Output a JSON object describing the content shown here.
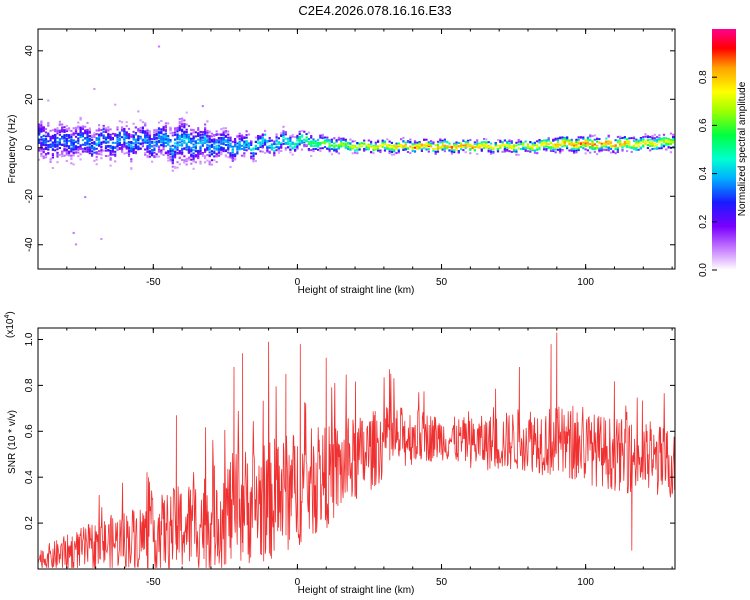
{
  "figure_title": "C2E4.2026.078.16.16.E33",
  "chart_data": [
    {
      "type": "heatmap",
      "title": "C2E4.2026.078.16.16.E33",
      "xlabel": "Height of straight line (km)",
      "ylabel": "Frequency (Hz)",
      "xlim": [
        -90,
        131
      ],
      "ylim": [
        -50,
        49
      ],
      "xticks": [
        -50,
        0,
        50,
        100
      ],
      "yticks": [
        -40,
        -20,
        0,
        20,
        40
      ],
      "xtick_labels": [
        "-50",
        "0",
        "50",
        "100"
      ],
      "ytick_labels": [
        "-40",
        "-20",
        "0",
        "20",
        "40"
      ],
      "colorbar": {
        "label": "Normalized spectral amplitude",
        "range": [
          0,
          1
        ],
        "ticks": [
          "0.0",
          "0.2",
          "0.4",
          "0.6",
          "0.8"
        ],
        "colors": [
          "#ffffff",
          "#cc88ff",
          "#7a00ff",
          "#1a1aff",
          "#00b0ff",
          "#00ffd0",
          "#00ff40",
          "#a0ff00",
          "#ffff00",
          "#ffa000",
          "#ff0000",
          "#ff0090"
        ]
      },
      "ridge": {
        "x": [
          -90,
          -70,
          -50,
          -40,
          -30,
          -20,
          -10,
          0,
          10,
          20,
          30,
          40,
          50,
          60,
          70,
          80,
          90,
          100,
          110,
          120,
          131
        ],
        "freq_center": [
          3,
          3,
          3,
          2,
          2,
          1,
          2,
          3,
          2,
          1,
          1,
          1,
          1,
          1,
          1,
          1,
          2,
          2,
          2,
          2,
          3
        ],
        "freq_spread": [
          12,
          9,
          10,
          13,
          10,
          7,
          5,
          5,
          4,
          3,
          3,
          3,
          3,
          3,
          3,
          3,
          4,
          4,
          4,
          4,
          4
        ],
        "peak_amplitude": [
          0.3,
          0.35,
          0.35,
          0.4,
          0.35,
          0.4,
          0.45,
          0.5,
          0.6,
          0.7,
          0.75,
          0.85,
          0.85,
          0.85,
          0.75,
          0.75,
          0.8,
          0.85,
          0.85,
          0.75,
          0.7
        ]
      }
    },
    {
      "type": "line",
      "xlabel": "Height of straight line (km)",
      "ylabel": "SNR (10 * v/v)",
      "y_multiplier_label": "(x10",
      "y_multiplier_exp": "4",
      "xlim": [
        -90,
        131
      ],
      "ylim": [
        0,
        1.05
      ],
      "xticks": [
        -50,
        0,
        50,
        100
      ],
      "yticks": [
        0.2,
        0.4,
        0.6,
        0.8,
        1.0
      ],
      "xtick_labels": [
        "-50",
        "0",
        "50",
        "100"
      ],
      "ytick_labels": [
        "0.2",
        "0.4",
        "0.6",
        "0.8",
        "1.0"
      ],
      "series": [
        {
          "color": "#f03030",
          "x": [
            -90,
            -80,
            -70,
            -60,
            -50,
            -40,
            -30,
            -20,
            -10,
            0,
            10,
            20,
            30,
            40,
            50,
            60,
            70,
            80,
            90,
            100,
            110,
            120,
            131
          ],
          "center": [
            0.04,
            0.07,
            0.1,
            0.13,
            0.15,
            0.18,
            0.22,
            0.27,
            0.3,
            0.35,
            0.4,
            0.47,
            0.55,
            0.58,
            0.57,
            0.55,
            0.55,
            0.57,
            0.55,
            0.53,
            0.5,
            0.48,
            0.46
          ],
          "noise": [
            0.03,
            0.05,
            0.07,
            0.08,
            0.1,
            0.12,
            0.14,
            0.16,
            0.17,
            0.16,
            0.14,
            0.12,
            0.1,
            0.08,
            0.06,
            0.07,
            0.08,
            0.09,
            0.1,
            0.1,
            0.1,
            0.1,
            0.1
          ],
          "spikes": [
            {
              "x": -42,
              "y": 0.67
            },
            {
              "x": -22,
              "y": 0.88
            },
            {
              "x": -19,
              "y": 0.94
            },
            {
              "x": -10,
              "y": 0.99
            },
            {
              "x": -4,
              "y": 0.85
            },
            {
              "x": 1,
              "y": 0.98
            },
            {
              "x": 10,
              "y": 0.92
            },
            {
              "x": 32,
              "y": 0.87
            },
            {
              "x": 77,
              "y": 0.88
            },
            {
              "x": 88,
              "y": 0.98
            },
            {
              "x": 90,
              "y": 1.03
            },
            {
              "x": 116,
              "y": 0.08
            }
          ]
        }
      ]
    }
  ]
}
